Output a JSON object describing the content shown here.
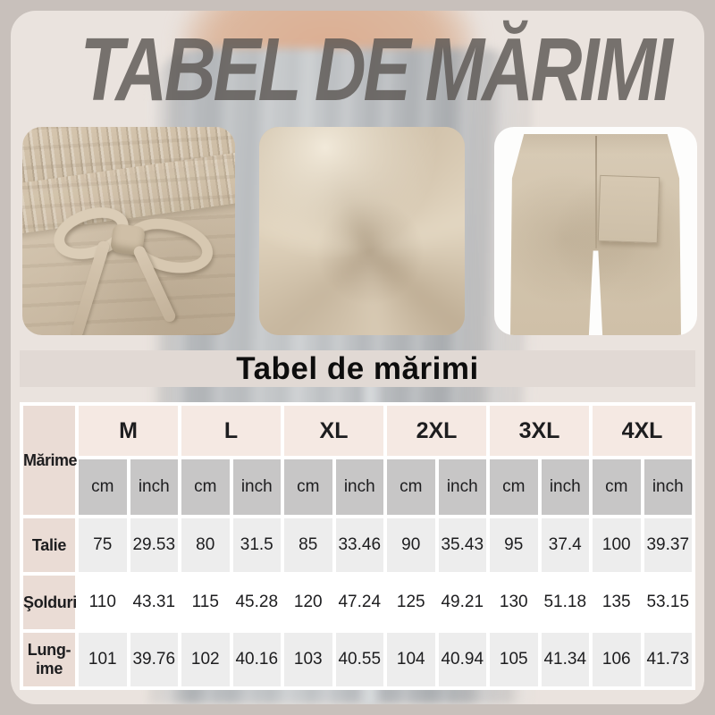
{
  "title": "TABEL DE MĂRIMI",
  "section_heading": "Tabel de mărimi",
  "photos": {
    "hero": "model-wearing-light-gray-pants",
    "details": [
      "drawstring-elastic-waistband-closeup",
      "linen-fabric-swirl-closeup",
      "beige-pants-back-view-with-pocket"
    ]
  },
  "size_table": {
    "corner_label": "Mărime",
    "sizes": [
      "M",
      "L",
      "XL",
      "2XL",
      "3XL",
      "4XL"
    ],
    "units": [
      "cm",
      "inch"
    ],
    "rows": [
      {
        "label": "Talie",
        "values": [
          "75",
          "29.53",
          "80",
          "31.5",
          "85",
          "33.46",
          "90",
          "35.43",
          "95",
          "37.4",
          "100",
          "39.37"
        ]
      },
      {
        "label": "Şolduri",
        "values": [
          "110",
          "43.31",
          "115",
          "45.28",
          "120",
          "47.24",
          "125",
          "49.21",
          "130",
          "51.18",
          "135",
          "53.15"
        ]
      },
      {
        "label": "Lung-\nime",
        "values": [
          "101",
          "39.76",
          "102",
          "40.16",
          "103",
          "40.55",
          "104",
          "40.94",
          "105",
          "41.34",
          "106",
          "41.73"
        ]
      }
    ]
  },
  "colors": {
    "outer_background": "#c8c0bb",
    "panel_background": "#eae3de",
    "title_gray": "#8d8682",
    "band_background": "#e1d9d4",
    "header_pink": "#f5e9e3",
    "label_pink": "#eadcd5",
    "unit_gray": "#c7c6c6",
    "row_alt_gray": "#ededed",
    "row_white": "#ffffff",
    "text_dark": "#1d1d1f"
  }
}
